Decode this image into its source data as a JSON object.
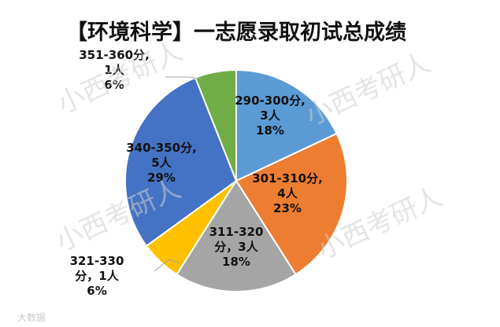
{
  "chart_data": {
    "type": "pie",
    "title": "【环境科学】一志愿录取初试总成绩",
    "slices": [
      {
        "label": "290-300分",
        "count": "3人",
        "count_value": 3,
        "percent": "18%",
        "value": 18,
        "color": "#5b9bd5",
        "label_lines": [
          "290-300分,",
          "3人",
          "18%"
        ]
      },
      {
        "label": "301-310分",
        "count": "4人",
        "count_value": 4,
        "percent": "23%",
        "value": 23,
        "color": "#ed7d31",
        "label_lines": [
          "301-310分,",
          "4人",
          "23%"
        ]
      },
      {
        "label": "311-320分",
        "count": "3人",
        "count_value": 3,
        "percent": "18%",
        "value": 18,
        "color": "#a5a5a5",
        "label_lines": [
          "311-320",
          "分，3人",
          "18%"
        ]
      },
      {
        "label": "321-330分",
        "count": "1人",
        "count_value": 1,
        "percent": "6%",
        "value": 6,
        "color": "#ffc000",
        "label_lines": [
          "321-330",
          "分，1人",
          "6%"
        ]
      },
      {
        "label": "340-350分",
        "count": "5人",
        "count_value": 5,
        "percent": "29%",
        "value": 29,
        "color": "#4472c4",
        "label_lines": [
          "340-350分,",
          "5人",
          "29%"
        ]
      },
      {
        "label": "351-360分",
        "count": "1人",
        "count_value": 1,
        "percent": "6%",
        "value": 6,
        "color": "#70ad47",
        "label_lines": [
          "351-360分,",
          "1人",
          "6%"
        ]
      }
    ],
    "legend": "none"
  },
  "watermark": {
    "text": "小西考研人"
  },
  "footer_mark": "大数据"
}
